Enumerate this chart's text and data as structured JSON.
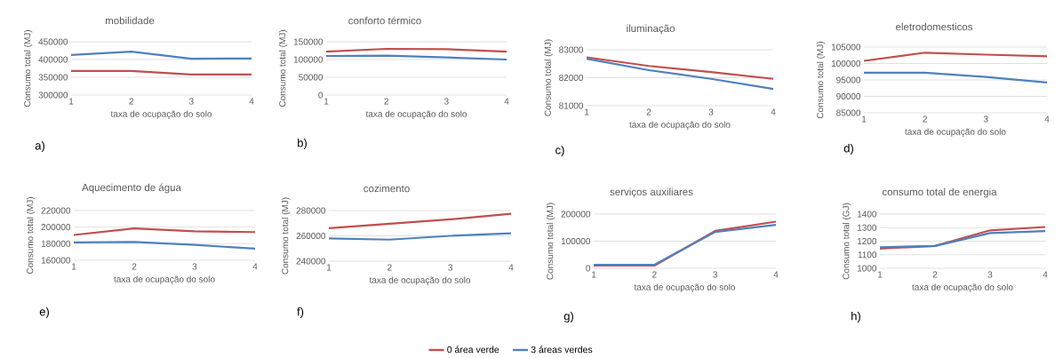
{
  "chart_data": [
    {
      "type": "line",
      "title": "mobilidade",
      "xlabel": "taxa de ocupação do solo",
      "ylabel": "Consumo total (MJ)",
      "categories": [
        "1",
        "2",
        "3",
        "4"
      ],
      "ylim": [
        300000,
        450000
      ],
      "yticks": [
        300000,
        350000,
        400000,
        450000
      ],
      "grid": "y",
      "annotations": [
        "a)"
      ],
      "series": [
        {
          "color": "#c0504d",
          "values": [
            368000,
            368000,
            358000,
            358000
          ]
        },
        {
          "color": "#4f81bd",
          "values": [
            413000,
            422000,
            402000,
            403000
          ]
        }
      ]
    },
    {
      "type": "line",
      "title": "conforto térmico",
      "xlabel": "taxa de ocupação do solo",
      "ylabel": "Consumo total (MJ)",
      "categories": [
        "1",
        "2",
        "3",
        "4"
      ],
      "ylim": [
        0,
        150000
      ],
      "yticks": [
        0,
        50000,
        100000,
        150000
      ],
      "grid": "y",
      "annotations": [
        "b)"
      ],
      "series": [
        {
          "color": "#c0504d",
          "values": [
            122000,
            130000,
            129000,
            122000
          ]
        },
        {
          "color": "#4f81bd",
          "values": [
            110000,
            111000,
            106000,
            100000
          ]
        }
      ]
    },
    {
      "type": "line",
      "title": "iluminação",
      "xlabel": "taxa de ocupação do solo",
      "ylabel": "Consumo total (MJ)",
      "categories": [
        "1",
        "2",
        "3",
        "4"
      ],
      "ylim": [
        81000,
        83000
      ],
      "yticks": [
        81000,
        82000,
        83000
      ],
      "grid": "y",
      "annotations": [
        "c)"
      ],
      "series": [
        {
          "color": "#c0504d",
          "values": [
            82730,
            82420,
            82200,
            81960
          ]
        },
        {
          "color": "#4f81bd",
          "values": [
            82680,
            82270,
            81960,
            81600
          ]
        }
      ]
    },
    {
      "type": "line",
      "title": "eletrodomesticos",
      "xlabel": "taxa de ocupação do solo",
      "ylabel": "Consumo total (MJ)",
      "categories": [
        "1",
        "2",
        "3",
        "4"
      ],
      "ylim": [
        85000,
        105000
      ],
      "yticks": [
        85000,
        90000,
        95000,
        100000,
        105000
      ],
      "grid": "y",
      "annotations": [
        "d)"
      ],
      "series": [
        {
          "color": "#c0504d",
          "values": [
            100800,
            103300,
            102700,
            102200
          ]
        },
        {
          "color": "#4f81bd",
          "values": [
            97200,
            97200,
            95900,
            94200
          ]
        }
      ]
    },
    {
      "type": "line",
      "title": "Aquecimento de água",
      "xlabel": "taxa de ocupação do solo",
      "ylabel": "Consumo total (MJ)",
      "categories": [
        "1",
        "2",
        "3",
        "4"
      ],
      "ylim": [
        160000,
        220000
      ],
      "yticks": [
        160000,
        180000,
        200000,
        220000
      ],
      "grid": "y",
      "annotations": [
        "e)"
      ],
      "series": [
        {
          "color": "#c0504d",
          "values": [
            190500,
            198500,
            195000,
            194000
          ]
        },
        {
          "color": "#4f81bd",
          "values": [
            181500,
            182000,
            178500,
            174000
          ]
        }
      ]
    },
    {
      "type": "line",
      "title": "cozimento",
      "xlabel": "taxa de ocupação do solo",
      "ylabel": "Consumo total (MJ)",
      "categories": [
        "1",
        "2",
        "3",
        "4"
      ],
      "ylim": [
        240000,
        280000
      ],
      "yticks": [
        240000,
        260000,
        280000
      ],
      "grid": "y",
      "annotations": [
        "f)"
      ],
      "series": [
        {
          "color": "#c0504d",
          "values": [
            266000,
            269500,
            273000,
            277500
          ]
        },
        {
          "color": "#4f81bd",
          "values": [
            258000,
            257000,
            260000,
            262000
          ]
        }
      ]
    },
    {
      "type": "line",
      "title": "serviços auxiliares",
      "xlabel": "taxa de ocupação do solo",
      "ylabel": "Consumo total (MJ)",
      "categories": [
        "1",
        "2",
        "3",
        "4"
      ],
      "ylim": [
        0,
        200000
      ],
      "yticks": [
        0,
        100000,
        200000
      ],
      "grid": "y",
      "annotations": [
        "g)"
      ],
      "series": [
        {
          "color": "#c0504d",
          "values": [
            10000,
            10000,
            138000,
            172000
          ]
        },
        {
          "color": "#4f81bd",
          "values": [
            13000,
            13000,
            134000,
            160000
          ]
        }
      ]
    },
    {
      "type": "line",
      "title": "consumo total de energia",
      "xlabel": "taxa de ocupação do solo",
      "ylabel": "Consumo total (GJ)",
      "categories": [
        "1",
        "2",
        "3",
        "4"
      ],
      "ylim": [
        1000,
        1400
      ],
      "yticks": [
        1000,
        1100,
        1200,
        1300,
        1400
      ],
      "grid": "y",
      "annotations": [
        "h)"
      ],
      "legend": "bottom",
      "series": [
        {
          "name": "0 área verde",
          "color": "#c0504d",
          "values": [
            1145,
            1165,
            1280,
            1305
          ]
        },
        {
          "name": "3 áreas verdes",
          "color": "#4f81bd",
          "values": [
            1155,
            1165,
            1260,
            1275
          ]
        }
      ]
    }
  ]
}
